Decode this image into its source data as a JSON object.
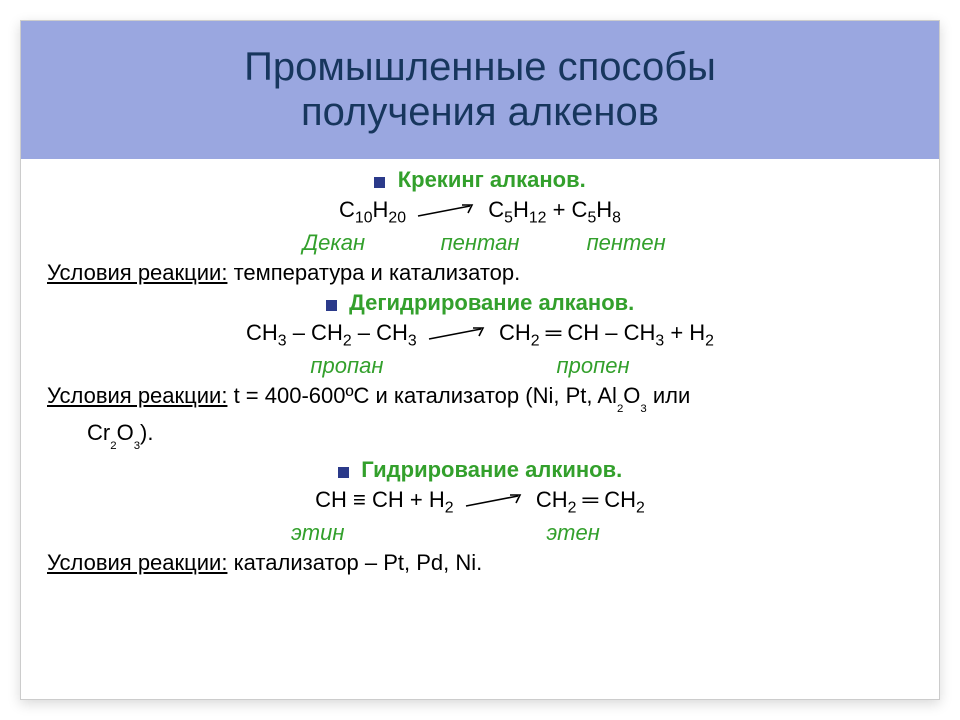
{
  "colors": {
    "title_bg": "#9aa7e0",
    "title_text": "#17365d",
    "bullet": "#2b3a8a",
    "heading_text": "#33a02c",
    "label_text": "#33a02c",
    "body_text": "#000000"
  },
  "fonts": {
    "title_size": 40,
    "heading_size": 22,
    "body_size": 22,
    "label_size": 22
  },
  "layout": {
    "title_height": 138
  },
  "title": {
    "line1": "Промышленные способы",
    "line2": "получения алкенов"
  },
  "section1": {
    "heading": "Крекинг алканов.",
    "eq_lhs": "C₁₀H₂₀",
    "eq_rhs": "C₅H₁₂  +  C₅H₈",
    "label_l": "Декан",
    "label_m": "пентан",
    "label_r": "пентен",
    "cond_label": "Условия реакции:",
    "cond_text": " температура и катализатор."
  },
  "section2": {
    "heading": "Дегидрирование алканов.",
    "eq_lhs": "CH₃ – CH₂ – CH₃",
    "eq_rhs": "CH₂ ═ CH – CH₃  +  H₂",
    "label_l": "пропан",
    "label_r": "пропен",
    "cond_label": "Условия реакции:",
    "cond_text1": " t = 400-600",
    "cond_unit": "ºС и катализатор (Ni, Pt, Al",
    "cond_al_sub": "₂",
    "cond_o": "O",
    "cond_o_sub": "₃",
    "cond_or": " или",
    "cond_line2_a": "Cr",
    "cond_line2_b": "₂",
    "cond_line2_c": "O",
    "cond_line2_d": "₃",
    "cond_line2_e": ")."
  },
  "section3": {
    "heading": "Гидрирование алкинов.",
    "eq_lhs": "CH ≡ CH  +  H₂",
    "eq_rhs": "CH₂ ═ CH₂",
    "label_l": "этин",
    "label_r": "этен",
    "cond_label": "Условия реакции:",
    "cond_text": " катализатор – Pt, Pd, Ni."
  },
  "arrow": {
    "width": 62,
    "height": 18,
    "stroke": "#000000"
  }
}
